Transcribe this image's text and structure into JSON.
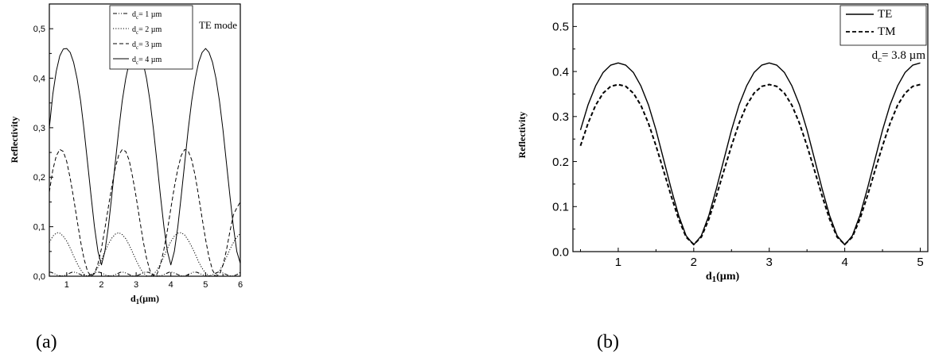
{
  "chart_data": [
    {
      "type": "line",
      "panel_label": "(a)",
      "annotation": "TE mode",
      "xlabel": "d",
      "xlabel_sub": "1",
      "xlabel_unit": "(µm)",
      "ylabel": "Reflectivity",
      "xlim": [
        0.5,
        6
      ],
      "ylim": [
        0,
        0.55
      ],
      "x_ticks": [
        "1",
        "2",
        "3",
        "4",
        "5",
        "6"
      ],
      "y_ticks": [
        "0,0",
        "0,1",
        "0,2",
        "0,3",
        "0,4",
        "0,5"
      ],
      "legend_position": "top-center",
      "series": [
        {
          "name": "dc= 1 µm",
          "name_main": "d",
          "name_sub": "c",
          "name_rest": "= 1 µm",
          "style": "dashdotdot",
          "x": [
            0.5,
            0.55,
            0.65,
            0.75,
            0.85,
            0.95,
            1.05,
            1.15,
            1.25,
            1.35,
            1.45,
            1.55,
            1.65,
            1.75,
            1.85,
            1.95,
            2.05,
            2.15,
            2.25,
            2.35,
            2.45,
            2.55,
            2.65,
            2.75,
            2.85,
            2.95,
            3.05,
            3.15,
            3.25,
            3.35,
            3.45,
            3.55,
            3.65,
            3.75,
            3.85,
            3.95,
            4.05,
            4.15,
            4.25,
            4.35,
            4.45,
            4.55,
            4.65,
            4.75,
            4.85,
            4.95,
            5.05,
            5.15,
            5.25,
            5.35,
            5.45,
            5.55,
            5.65,
            5.75,
            5.85,
            5.95,
            6.0
          ],
          "y": [
            0.008,
            0.008,
            0.005,
            0.002,
            0.0,
            0.002,
            0.005,
            0.008,
            0.008,
            0.005,
            0.002,
            0.0,
            0.002,
            0.005,
            0.008,
            0.008,
            0.005,
            0.002,
            0.0,
            0.002,
            0.005,
            0.008,
            0.008,
            0.005,
            0.002,
            0.0,
            0.002,
            0.005,
            0.008,
            0.008,
            0.005,
            0.002,
            0.0,
            0.002,
            0.005,
            0.008,
            0.008,
            0.005,
            0.002,
            0.0,
            0.002,
            0.005,
            0.008,
            0.008,
            0.005,
            0.002,
            0.0,
            0.002,
            0.005,
            0.008,
            0.008,
            0.005,
            0.002,
            0.0,
            0.002,
            0.005,
            0.008
          ]
        },
        {
          "name": "dc= 2 µm",
          "name_main": "d",
          "name_sub": "c",
          "name_rest": "= 2 µm",
          "style": "dotted",
          "x": [
            0.5,
            0.6,
            0.7,
            0.75,
            0.8,
            0.9,
            1.0,
            1.1,
            1.2,
            1.3,
            1.4,
            1.5,
            1.6,
            1.7,
            1.8,
            1.9,
            2.0,
            2.1,
            2.2,
            2.3,
            2.4,
            2.5,
            2.6,
            2.7,
            2.8,
            2.9,
            3.0,
            3.1,
            3.2,
            3.3,
            3.4,
            3.5,
            3.6,
            3.7,
            3.8,
            3.9,
            4.0,
            4.1,
            4.2,
            4.3,
            4.4,
            4.5,
            4.6,
            4.7,
            4.8,
            4.9,
            5.0,
            5.1,
            5.2,
            5.3,
            5.4,
            5.5,
            5.6,
            5.7,
            5.8,
            5.9,
            6.0
          ],
          "y": [
            0.068,
            0.081,
            0.087,
            0.088,
            0.087,
            0.081,
            0.071,
            0.057,
            0.041,
            0.026,
            0.013,
            0.004,
            0.0,
            0.001,
            0.007,
            0.018,
            0.033,
            0.05,
            0.065,
            0.077,
            0.085,
            0.088,
            0.084,
            0.076,
            0.063,
            0.048,
            0.032,
            0.018,
            0.007,
            0.001,
            0.0,
            0.004,
            0.012,
            0.025,
            0.04,
            0.056,
            0.07,
            0.081,
            0.087,
            0.088,
            0.083,
            0.073,
            0.06,
            0.045,
            0.029,
            0.016,
            0.006,
            0.001,
            0.0,
            0.003,
            0.011,
            0.023,
            0.038,
            0.054,
            0.068,
            0.079,
            0.086
          ]
        },
        {
          "name": "dc= 3 µm",
          "name_main": "d",
          "name_sub": "c",
          "name_rest": "= 3 µm",
          "style": "dashed",
          "x": [
            0.5,
            0.6,
            0.7,
            0.8,
            0.9,
            1.0,
            1.1,
            1.2,
            1.3,
            1.4,
            1.5,
            1.6,
            1.7,
            1.8,
            1.9,
            2.0,
            2.1,
            2.2,
            2.3,
            2.4,
            2.5,
            2.6,
            2.7,
            2.8,
            2.9,
            3.0,
            3.1,
            3.2,
            3.3,
            3.4,
            3.5,
            3.6,
            3.7,
            3.8,
            3.9,
            4.0,
            4.1,
            4.2,
            4.3,
            4.4,
            4.5,
            4.6,
            4.7,
            4.8,
            4.9,
            5.0,
            5.1,
            5.2,
            5.3,
            5.4,
            5.5,
            5.6,
            5.7,
            5.8,
            5.9,
            6.0
          ],
          "y": [
            0.17,
            0.215,
            0.243,
            0.256,
            0.252,
            0.232,
            0.198,
            0.158,
            0.113,
            0.07,
            0.035,
            0.01,
            0.0,
            0.005,
            0.025,
            0.056,
            0.096,
            0.14,
            0.181,
            0.219,
            0.245,
            0.256,
            0.252,
            0.234,
            0.2,
            0.16,
            0.115,
            0.072,
            0.036,
            0.011,
            0.0,
            0.004,
            0.023,
            0.054,
            0.093,
            0.137,
            0.18,
            0.217,
            0.244,
            0.256,
            0.253,
            0.235,
            0.203,
            0.162,
            0.117,
            0.074,
            0.038,
            0.012,
            0.0,
            0.004,
            0.022,
            0.052,
            0.09,
            0.124,
            0.138,
            0.15
          ]
        },
        {
          "name": "dc= 4 µm",
          "name_main": "d",
          "name_sub": "c",
          "name_rest": "= 4 µm",
          "style": "solid",
          "x": [
            0.5,
            0.6,
            0.7,
            0.8,
            0.9,
            1.0,
            1.1,
            1.2,
            1.3,
            1.4,
            1.5,
            1.6,
            1.7,
            1.8,
            1.9,
            2.0,
            2.1,
            2.2,
            2.3,
            2.4,
            2.5,
            2.6,
            2.7,
            2.8,
            2.9,
            3.0,
            3.1,
            3.2,
            3.3,
            3.4,
            3.5,
            3.6,
            3.7,
            3.8,
            3.9,
            4.0,
            4.1,
            4.2,
            4.3,
            4.4,
            4.5,
            4.6,
            4.7,
            4.8,
            4.9,
            5.0,
            5.1,
            5.2,
            5.3,
            5.4,
            5.5,
            5.6,
            5.7,
            5.8,
            5.9,
            6.0
          ],
          "y": [
            0.3,
            0.368,
            0.414,
            0.445,
            0.459,
            0.46,
            0.452,
            0.432,
            0.399,
            0.354,
            0.296,
            0.23,
            0.163,
            0.1,
            0.05,
            0.023,
            0.05,
            0.1,
            0.163,
            0.23,
            0.296,
            0.354,
            0.399,
            0.432,
            0.452,
            0.46,
            0.452,
            0.432,
            0.399,
            0.354,
            0.296,
            0.23,
            0.163,
            0.1,
            0.05,
            0.023,
            0.05,
            0.1,
            0.163,
            0.23,
            0.296,
            0.354,
            0.399,
            0.432,
            0.452,
            0.46,
            0.452,
            0.432,
            0.399,
            0.354,
            0.296,
            0.23,
            0.163,
            0.1,
            0.05,
            0.026
          ]
        }
      ]
    },
    {
      "type": "line",
      "panel_label": "(b)",
      "annotation": "",
      "xlabel": "d",
      "xlabel_sub": "1",
      "xlabel_unit": "(µm)",
      "ylabel": "Reflectivity",
      "xlim": [
        0.4,
        5.1
      ],
      "ylim": [
        0,
        0.55
      ],
      "x_ticks": [
        "1",
        "2",
        "3",
        "4",
        "5"
      ],
      "y_ticks": [
        "0.0",
        "0.1",
        "0.2",
        "0.3",
        "0.4",
        "0.5"
      ],
      "legend_position": "top-right",
      "legend_note": {
        "main": "d",
        "sub": "c",
        "rest": "= 3.8 µm"
      },
      "series": [
        {
          "name": "TE",
          "name_main": "TE",
          "name_sub": "",
          "name_rest": "",
          "style": "solid",
          "x": [
            0.5,
            0.6,
            0.7,
            0.8,
            0.9,
            1.0,
            1.1,
            1.2,
            1.3,
            1.4,
            1.5,
            1.6,
            1.7,
            1.8,
            1.9,
            2.0,
            2.1,
            2.2,
            2.3,
            2.4,
            2.5,
            2.6,
            2.7,
            2.8,
            2.9,
            3.0,
            3.1,
            3.2,
            3.3,
            3.4,
            3.5,
            3.6,
            3.7,
            3.8,
            3.9,
            4.0,
            4.1,
            4.2,
            4.3,
            4.4,
            4.5,
            4.6,
            4.7,
            4.8,
            4.9,
            5.0
          ],
          "y": [
            0.27,
            0.326,
            0.368,
            0.398,
            0.414,
            0.419,
            0.414,
            0.398,
            0.368,
            0.326,
            0.27,
            0.205,
            0.14,
            0.08,
            0.035,
            0.015,
            0.035,
            0.08,
            0.14,
            0.205,
            0.27,
            0.326,
            0.368,
            0.398,
            0.414,
            0.419,
            0.414,
            0.398,
            0.368,
            0.326,
            0.27,
            0.205,
            0.14,
            0.08,
            0.035,
            0.015,
            0.035,
            0.08,
            0.14,
            0.205,
            0.27,
            0.326,
            0.368,
            0.398,
            0.414,
            0.419
          ]
        },
        {
          "name": "TM",
          "name_main": "TM",
          "name_sub": "",
          "name_rest": "",
          "style": "dashed",
          "x": [
            0.5,
            0.6,
            0.7,
            0.8,
            0.9,
            1.0,
            1.1,
            1.2,
            1.3,
            1.4,
            1.5,
            1.6,
            1.7,
            1.8,
            1.9,
            2.0,
            2.1,
            2.2,
            2.3,
            2.4,
            2.5,
            2.6,
            2.7,
            2.8,
            2.9,
            3.0,
            3.1,
            3.2,
            3.3,
            3.4,
            3.5,
            3.6,
            3.7,
            3.8,
            3.9,
            4.0,
            4.1,
            4.2,
            4.3,
            4.4,
            4.5,
            4.6,
            4.7,
            4.8,
            4.9,
            5.0
          ],
          "y": [
            0.235,
            0.285,
            0.325,
            0.352,
            0.367,
            0.371,
            0.367,
            0.352,
            0.325,
            0.285,
            0.235,
            0.18,
            0.124,
            0.072,
            0.032,
            0.016,
            0.032,
            0.072,
            0.124,
            0.18,
            0.235,
            0.285,
            0.325,
            0.352,
            0.367,
            0.371,
            0.367,
            0.352,
            0.325,
            0.285,
            0.235,
            0.18,
            0.124,
            0.072,
            0.032,
            0.016,
            0.032,
            0.072,
            0.124,
            0.18,
            0.235,
            0.285,
            0.325,
            0.352,
            0.367,
            0.371
          ]
        }
      ]
    }
  ]
}
